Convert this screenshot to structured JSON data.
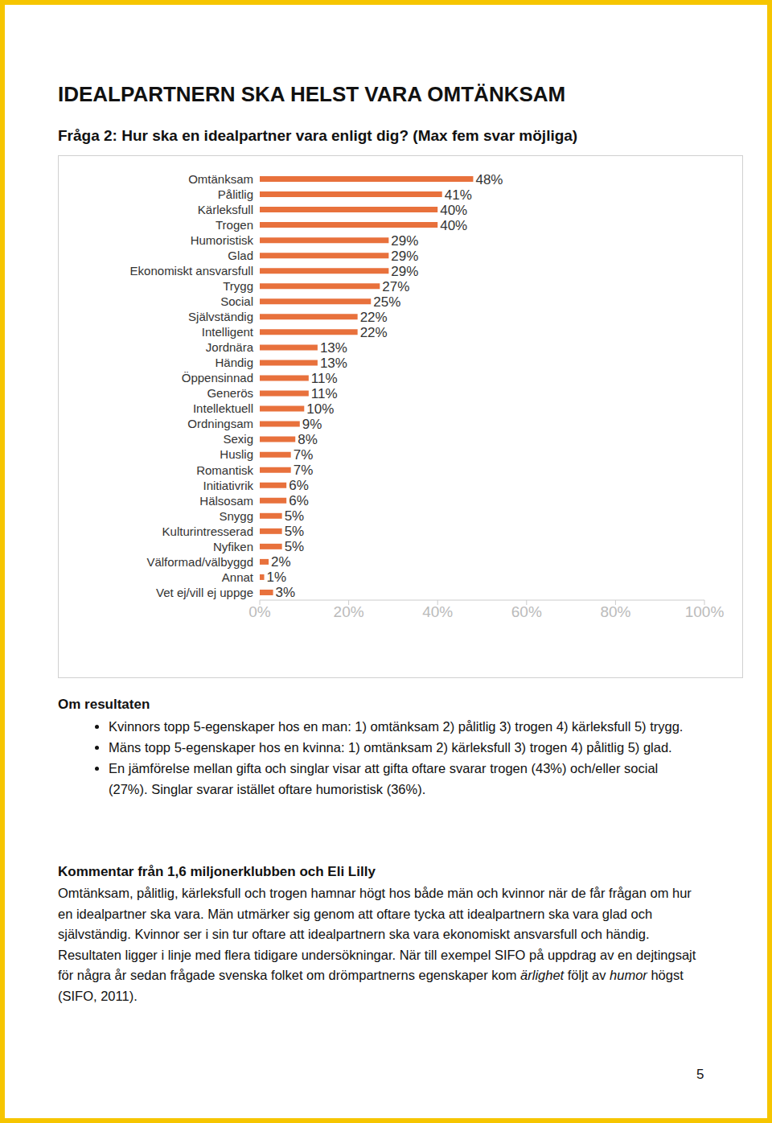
{
  "title": "IDEALPARTNERN SKA HELST VARA OMTÄNKSAM",
  "question": "Fråga 2: Hur ska en idealpartner vara enligt dig? (Max fem svar möjliga)",
  "chart_data": {
    "type": "bar",
    "orientation": "horizontal",
    "categories": [
      "Omtänksam",
      "Pålitlig",
      "Kärleksfull",
      "Trogen",
      "Humoristisk",
      "Glad",
      "Ekonomiskt ansvarsfull",
      "Trygg",
      "Social",
      "Självständig",
      "Intelligent",
      "Jordnära",
      "Händig",
      "Öppensinnad",
      "Generös",
      "Intellektuell",
      "Ordningsam",
      "Sexig",
      "Huslig",
      "Romantisk",
      "Initiativrik",
      "Hälsosam",
      "Snygg",
      "Kulturintresserad",
      "Nyfiken",
      "Välformad/välbyggd",
      "Annat",
      "Vet ej/vill ej uppge"
    ],
    "values": [
      48,
      41,
      40,
      40,
      29,
      29,
      29,
      27,
      25,
      22,
      22,
      13,
      13,
      11,
      11,
      10,
      9,
      8,
      7,
      7,
      6,
      6,
      5,
      5,
      5,
      2,
      1,
      3
    ],
    "value_labels": [
      "48%",
      "41%",
      "40%",
      "40%",
      "29%",
      "29%",
      "29%",
      "27%",
      "25%",
      "22%",
      "22%",
      "13%",
      "13%",
      "11%",
      "11%",
      "10%",
      "9%",
      "8%",
      "7%",
      "7%",
      "6%",
      "6%",
      "5%",
      "5%",
      "5%",
      "2%",
      "1%",
      "3%"
    ],
    "color": "#e8713c",
    "xlim": [
      0,
      100
    ],
    "xticks": [
      {
        "value": 0,
        "label": "0%"
      },
      {
        "value": 20,
        "label": "20%"
      },
      {
        "value": 40,
        "label": "40%"
      },
      {
        "value": 60,
        "label": "60%"
      },
      {
        "value": 80,
        "label": "80%"
      },
      {
        "value": 100,
        "label": "100%"
      }
    ],
    "data_labels": true,
    "grid": false
  },
  "results": {
    "heading": "Om resultaten",
    "bullets": [
      "Kvinnors topp 5-egenskaper hos en man: 1) omtänksam 2) pålitlig 3) trogen 4) kärleksfull 5) trygg.",
      "Mäns topp 5-egenskaper hos en kvinna: 1) omtänksam 2) kärleksfull 3) trogen 4) pålitlig 5) glad.",
      "En jämförelse mellan gifta och singlar visar att gifta oftare svarar trogen (43%) och/eller social (27%). Singlar svarar istället oftare humoristisk (36%)."
    ]
  },
  "comment": {
    "heading": "Kommentar från 1,6 miljonerklubben och Eli Lilly",
    "paragraph": [
      {
        "text": "Omtänksam, pålitlig, kärleksfull och trogen hamnar högt hos både män och kvinnor när de får frågan om hur en idealpartner ska vara. Män utmärker sig genom att oftare tycka att idealpartnern ska vara glad och självständig. Kvinnor ser i sin tur oftare att idealpartnern ska vara ekonomiskt ansvarsfull och händig. Resultaten ligger i linje med flera tidigare undersökningar. När till exempel SIFO på uppdrag av en dejtingsajt för några år sedan frågade svenska folket om drömpartnerns egenskaper kom ",
        "italic": false
      },
      {
        "text": "ärlighet",
        "italic": true
      },
      {
        "text": " följt av ",
        "italic": false
      },
      {
        "text": "humor",
        "italic": true
      },
      {
        "text": " högst (SIFO, 2011).",
        "italic": false
      }
    ]
  },
  "page_number": "5"
}
